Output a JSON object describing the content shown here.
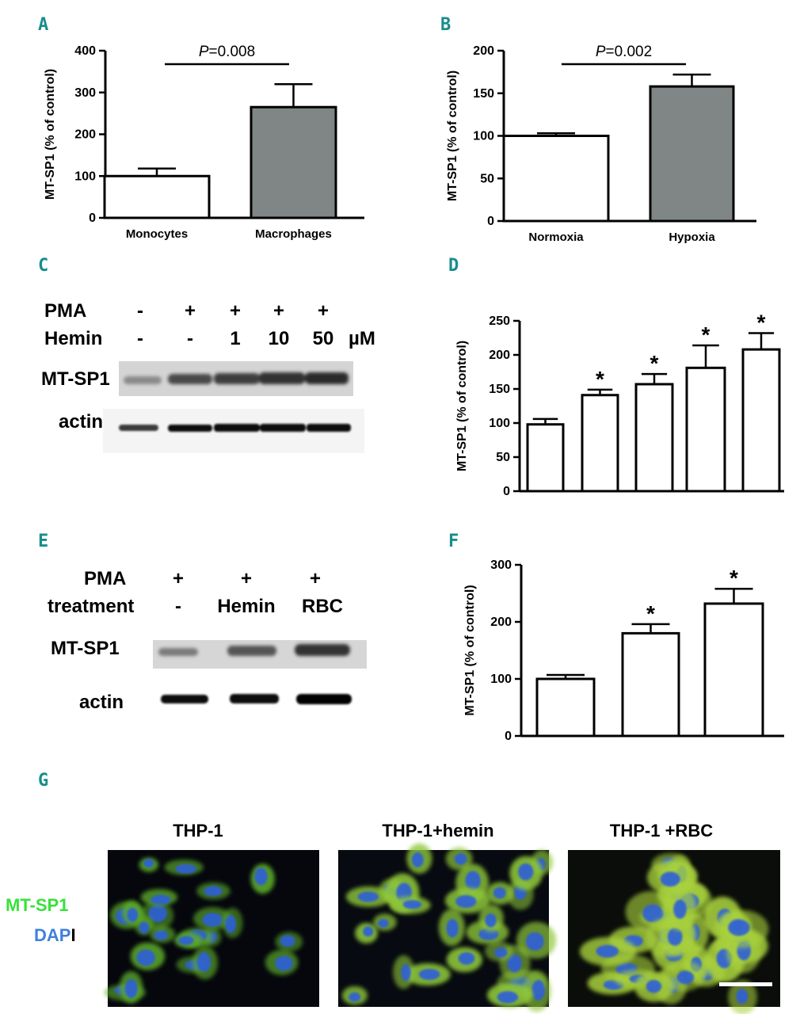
{
  "panels": {
    "A": "A",
    "B": "B",
    "C": "C",
    "D": "D",
    "E": "E",
    "F": "F",
    "G": "G"
  },
  "chart_data": [
    {
      "panel": "A",
      "type": "bar",
      "categories": [
        "Monocytes",
        "Macrophages"
      ],
      "values": [
        100,
        265
      ],
      "errors": [
        18,
        55
      ],
      "colors": [
        "#ffffff",
        "#7f8685"
      ],
      "ylabel": "MT-SP1 (% of control)",
      "ylim": [
        0,
        400
      ],
      "yticks": [
        0,
        100,
        200,
        300,
        400
      ],
      "annotation": {
        "p_label": "P",
        "p_value": "=0.008"
      }
    },
    {
      "panel": "B",
      "type": "bar",
      "categories": [
        "Normoxia",
        "Hypoxia"
      ],
      "values": [
        100,
        158
      ],
      "errors": [
        3,
        14
      ],
      "colors": [
        "#ffffff",
        "#7f8685"
      ],
      "ylabel": "MT-SP1 (% of control)",
      "ylim": [
        0,
        200
      ],
      "yticks": [
        0,
        50,
        100,
        150,
        200
      ],
      "annotation": {
        "p_label": "P",
        "p_value": "=0.002"
      }
    },
    {
      "panel": "D",
      "type": "bar",
      "categories": [
        "",
        "",
        "",
        "",
        ""
      ],
      "values": [
        98,
        141,
        157,
        181,
        208
      ],
      "errors": [
        8,
        8,
        15,
        33,
        24
      ],
      "significant": [
        false,
        true,
        true,
        true,
        true
      ],
      "star": "*",
      "colors": [
        "#ffffff",
        "#ffffff",
        "#ffffff",
        "#ffffff",
        "#ffffff"
      ],
      "ylabel": "MT-SP1 (% of control)",
      "ylim": [
        0,
        250
      ],
      "yticks": [
        0,
        50,
        100,
        150,
        200,
        250
      ]
    },
    {
      "panel": "F",
      "type": "bar",
      "categories": [
        "",
        "",
        ""
      ],
      "values": [
        100,
        180,
        232
      ],
      "errors": [
        7,
        16,
        26
      ],
      "significant": [
        false,
        true,
        true
      ],
      "star": "*",
      "colors": [
        "#ffffff",
        "#ffffff",
        "#ffffff"
      ],
      "ylabel": "MT-SP1 (% of control)",
      "ylim": [
        0,
        300
      ],
      "yticks": [
        0,
        100,
        200,
        300
      ]
    }
  ],
  "blot_c": {
    "row1_label": "PMA",
    "row1_values": [
      "-",
      "+",
      "+",
      "+",
      "+"
    ],
    "row2_label": "Hemin",
    "row2_values": [
      "-",
      "-",
      "1",
      "10",
      "50"
    ],
    "unit": "µM",
    "band1": "MT-SP1",
    "band2": "actin"
  },
  "blot_e": {
    "row1_label": "PMA",
    "row1_values": [
      "+",
      "+",
      "+"
    ],
    "row2_label": "treatment",
    "row2_values": [
      "-",
      "Hemin",
      "RBC"
    ],
    "band1": "MT-SP1",
    "band2": "actin"
  },
  "micrographs": {
    "titles": [
      "THP-1",
      "THP-1+hemin",
      "THP-1 +RBC"
    ],
    "stain_green": "MT-SP1",
    "stain_blue": "DAP",
    "stain_tail": "I"
  },
  "colors": {
    "panel_label": "#1a8c8c",
    "bar_gray": "#7f8685",
    "green_stain": "#37e23a",
    "blue_stain": "#3f7fe0"
  }
}
